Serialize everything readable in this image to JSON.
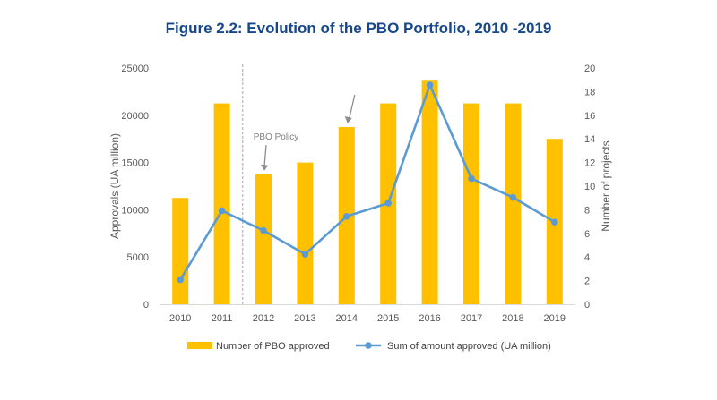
{
  "chart_data": {
    "type": "bar",
    "title": "Figure 2.2: Evolution of the PBO Portfolio, 2010 -2019",
    "categories": [
      "2010",
      "2011",
      "2012",
      "2013",
      "2014",
      "2015",
      "2016",
      "2017",
      "2018",
      "2019"
    ],
    "ylabel_left": "Approvals (UA million)",
    "ylabel_right": "Number of projects",
    "ylim_left": [
      0,
      25000
    ],
    "ylim_right": [
      0,
      20
    ],
    "yticks_left": [
      "0",
      "5000",
      "10000",
      "15000",
      "20000",
      "25000"
    ],
    "yticks_right": [
      "0",
      "2",
      "4",
      "6",
      "8",
      "10",
      "12",
      "14",
      "16",
      "18",
      "20"
    ],
    "grid": false,
    "legend_position": "bottom",
    "series": [
      {
        "name": "Number of PBO approved",
        "type": "bar",
        "axis": "right",
        "color": "#ffc000",
        "values": [
          9,
          17,
          11,
          12,
          15,
          17,
          19,
          17,
          17,
          14
        ]
      },
      {
        "name": "Sum of amount approved (UA million)",
        "type": "line",
        "axis": "left",
        "color": "#5b9bd5",
        "values": [
          2600,
          9900,
          7800,
          5300,
          9300,
          10700,
          23200,
          13300,
          11300,
          8700
        ]
      }
    ],
    "annotations": [
      {
        "text": "PBO Policy",
        "category": "2012"
      }
    ],
    "colors": {
      "title": "#17468a",
      "axis_text": "#595959",
      "annotation": "#808080",
      "policy_line": "#a6a6a6"
    }
  }
}
